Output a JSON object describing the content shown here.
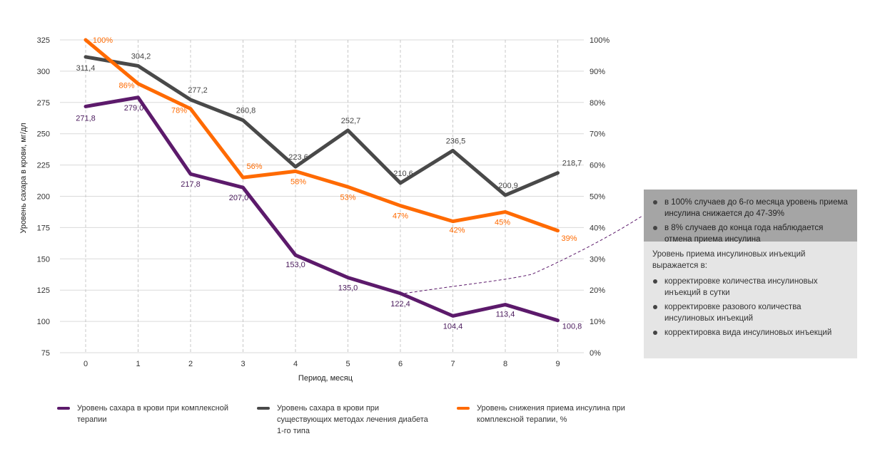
{
  "chart_data": {
    "type": "line",
    "xlabel": "Период, месяц",
    "ylabel": "Уровень сахара в крови, мг/дл",
    "categories": [
      "0",
      "1",
      "2",
      "3",
      "4",
      "5",
      "6",
      "7",
      "8",
      "9"
    ],
    "ylim": [
      75,
      325
    ],
    "yticks": [
      75,
      100,
      125,
      150,
      175,
      200,
      225,
      250,
      275,
      300,
      325
    ],
    "y2lim": [
      0,
      100
    ],
    "y2ticks": [
      "0%",
      "10%",
      "20%",
      "30%",
      "40%",
      "50%",
      "60%",
      "70%",
      "80%",
      "90%",
      "100%"
    ],
    "grid": true,
    "series": [
      {
        "name": "Уровень сахара в крови при комплексной терапии",
        "axis": "left",
        "color": "#5c1a6b",
        "values": [
          271.8,
          279.0,
          217.8,
          207.0,
          153.0,
          135.0,
          122.4,
          104.4,
          113.4,
          100.8
        ],
        "labels": [
          "271,8",
          "279,0",
          "217,8",
          "207,0",
          "153,0",
          "135,0",
          "122,4",
          "104,4",
          "113,4",
          "100,8"
        ]
      },
      {
        "name": "Уровень сахара в крови при существующих методах лечения диабета 1-го типа",
        "axis": "left",
        "color": "#494949",
        "values": [
          311.4,
          304.2,
          277.2,
          260.8,
          223.6,
          252.7,
          210.6,
          236.5,
          200.9,
          218.7
        ],
        "labels": [
          "311,4",
          "304,2",
          "277,2",
          "260,8",
          "223,6",
          "252,7",
          "210,6",
          "236,5",
          "200,9",
          "218,7"
        ]
      },
      {
        "name": "Уровень снижения приема инсулина при комплексной терапии, %",
        "axis": "right",
        "color": "#ff6a00",
        "values": [
          100,
          86,
          78,
          56,
          58,
          53,
          47,
          42,
          45,
          39
        ],
        "labels": [
          "100%",
          "86%",
          "78%",
          "56%",
          "58%",
          "53%",
          "47%",
          "42%",
          "45%",
          "39%"
        ]
      }
    ],
    "legend": [
      {
        "text": "Уровень сахара в крови при комплексной терапии",
        "color": "#5c1a6b"
      },
      {
        "text": "Уровень сахара в крови при существующих методах лечения диабета 1-го типа",
        "color": "#494949"
      },
      {
        "text": "Уровень снижения приема инсулина при комплексной терапии, %",
        "color": "#ff6a00"
      }
    ]
  },
  "info_box": {
    "dark_items": [
      "в 100% случаев до 6-го месяца уровень приема инсулина снижается до 47-39%",
      "в 8% случаев до конца года наблюдается отмена приема инсулина"
    ],
    "heading": "Уровень приема инсулиновых инъекций выражается в:",
    "light_items": [
      "корректировке количества инсулиновых инъекций в сутки",
      "корректировке разового количества инсулиновых инъекций",
      "корректировка вида инсулиновых инъекций"
    ]
  }
}
